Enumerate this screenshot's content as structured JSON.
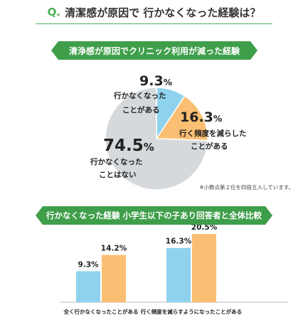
{
  "question": {
    "prefix": "Q.",
    "text": "清潔感が原因で 行かなくなった経験は？"
  },
  "pie_title": "清浄感が原因でクリニック利用が減った経験",
  "bar_title": "行かなくなった経験 小学生以下の子あり回答者と全体比較",
  "note": "※小数点第２位を四捨五入しています。",
  "colors": {
    "blue": "#8fd2ee",
    "orange": "#fbbf73",
    "gray": "#d6d9dc",
    "green": "#3f9e4a"
  },
  "chart_data": [
    {
      "type": "pie",
      "categories": [
        "行かなくなったことがある",
        "行く頻度を減らしたことがある",
        "行かなくなったことはない"
      ],
      "values": [
        9.3,
        16.3,
        74.5
      ],
      "labels": [
        {
          "value": "9.3",
          "unit": "%",
          "line1": "行かなくなった",
          "line2": "ことがある"
        },
        {
          "value": "16.3",
          "unit": "%",
          "line1": "行く頻度を減らした",
          "line2": "ことがある"
        },
        {
          "value": "74.5",
          "unit": "%",
          "line1": "行かなくなった",
          "line2": "ことはない"
        }
      ],
      "colors": [
        "#8fd2ee",
        "#fbbf73",
        "#d6d9dc"
      ]
    },
    {
      "type": "bar",
      "categories": [
        "全く行かなくなったことがある",
        "行く頻度を減らすようになったことがある"
      ],
      "series": [
        {
          "values": [
            9.3,
            16.3
          ],
          "color": "#8fd2ee"
        },
        {
          "values": [
            14.2,
            20.5
          ],
          "color": "#fbbf73"
        }
      ],
      "value_labels": [
        [
          "9.3%",
          "16.3%"
        ],
        [
          "14.2%",
          "20.5%"
        ]
      ],
      "ylim": [
        0,
        22
      ]
    }
  ]
}
